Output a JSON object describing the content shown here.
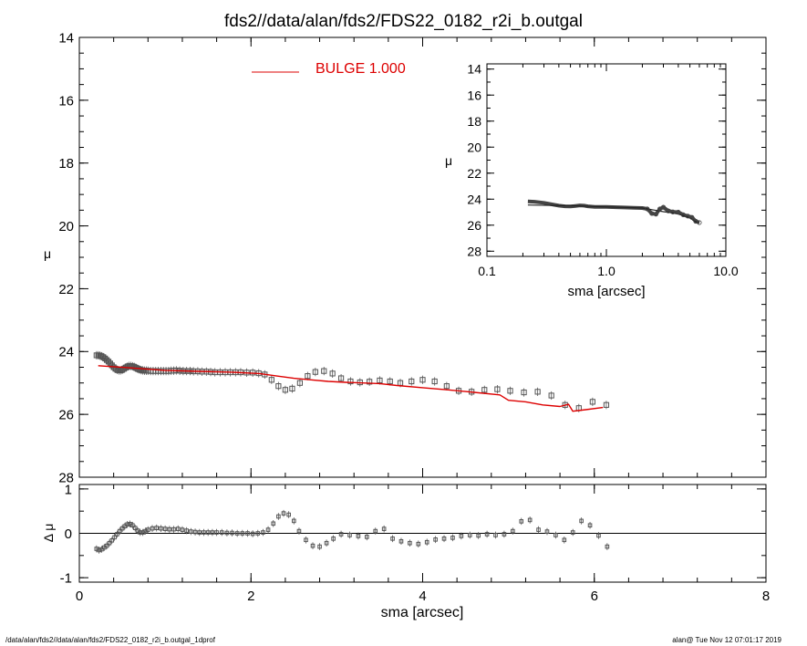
{
  "page": {
    "title": "fds2//data/alan/fds2/FDS22_0182_r2i_b.outgal",
    "footer_left": "/data/alan/fds2//data/alan/fds2/FDS22_0182_r2i_b.outgal_1dprof",
    "footer_right": "alan@  Tue Nov 12 07:01:17 2019"
  },
  "chart_data": [
    {
      "id": "main",
      "type": "scatter",
      "xlabel": "",
      "ylabel": "μ",
      "xlim": [
        0,
        8
      ],
      "ylim": [
        28,
        14
      ],
      "x_inverted": false,
      "y_inverted": true,
      "xticks": [
        0,
        2,
        4,
        6,
        8
      ],
      "xtick_labels": [
        "",
        "",
        "",
        "",
        ""
      ],
      "yticks": [
        14,
        16,
        18,
        20,
        22,
        24,
        26,
        28
      ],
      "ytick_labels": [
        "14",
        "16",
        "18",
        "20",
        "22",
        "24",
        "26",
        "28"
      ],
      "legend": {
        "label": "BULGE  1.000",
        "color": "#dd0000",
        "position": "top-left"
      },
      "series": [
        {
          "kind": "points",
          "color": "#555555",
          "x": [
            0.2,
            0.22,
            0.24,
            0.26,
            0.28,
            0.3,
            0.32,
            0.34,
            0.36,
            0.38,
            0.4,
            0.42,
            0.44,
            0.46,
            0.48,
            0.5,
            0.52,
            0.54,
            0.56,
            0.58,
            0.6,
            0.62,
            0.64,
            0.66,
            0.68,
            0.7,
            0.72,
            0.74,
            0.76,
            0.78,
            0.8,
            0.83,
            0.86,
            0.89,
            0.92,
            0.95,
            0.98,
            1.01,
            1.04,
            1.07,
            1.1,
            1.13,
            1.17,
            1.21,
            1.25,
            1.29,
            1.33,
            1.38,
            1.43,
            1.48,
            1.53,
            1.58,
            1.64,
            1.7,
            1.76,
            1.82,
            1.88,
            1.95,
            2.02,
            2.09,
            2.16,
            2.24,
            2.32,
            2.4,
            2.48,
            2.57,
            2.66,
            2.75,
            2.85,
            2.95,
            3.05,
            3.16,
            3.27,
            3.38,
            3.5,
            3.62,
            3.74,
            3.87,
            4.0,
            4.14,
            4.28,
            4.42,
            4.57,
            4.72,
            4.87,
            5.02,
            5.18,
            5.34,
            5.5,
            5.66,
            5.82,
            5.98,
            6.14
          ],
          "y": [
            24.12,
            24.12,
            24.13,
            24.15,
            24.18,
            24.22,
            24.27,
            24.32,
            24.38,
            24.44,
            24.5,
            24.55,
            24.58,
            24.6,
            24.6,
            24.58,
            24.55,
            24.51,
            24.48,
            24.46,
            24.46,
            24.47,
            24.49,
            24.52,
            24.55,
            24.57,
            24.59,
            24.6,
            24.61,
            24.61,
            24.61,
            24.62,
            24.62,
            24.62,
            24.62,
            24.62,
            24.62,
            24.62,
            24.62,
            24.61,
            24.61,
            24.6,
            24.61,
            24.62,
            24.62,
            24.62,
            24.63,
            24.63,
            24.64,
            24.64,
            24.65,
            24.66,
            24.66,
            24.66,
            24.66,
            24.66,
            24.66,
            24.67,
            24.67,
            24.69,
            24.73,
            24.9,
            25.1,
            25.22,
            25.18,
            25.0,
            24.78,
            24.65,
            24.62,
            24.7,
            24.85,
            24.95,
            24.98,
            24.96,
            24.92,
            24.95,
            25.0,
            24.95,
            24.9,
            24.95,
            25.1,
            25.25,
            25.28,
            25.22,
            25.2,
            25.25,
            25.3,
            25.28,
            25.4,
            25.7,
            25.8,
            25.6,
            25.7
          ],
          "yerr_display": "small vertical bars"
        },
        {
          "kind": "line",
          "name": "BULGE  1.000",
          "color": "#dd0000",
          "x": [
            0.22,
            0.6,
            1.0,
            1.4,
            1.8,
            2.1,
            2.3,
            2.5,
            2.7,
            2.9,
            3.1,
            3.3,
            3.5,
            3.7,
            4.0,
            4.3,
            4.6,
            4.9,
            5.0,
            5.2,
            5.4,
            5.6,
            5.7,
            5.75,
            5.9,
            6.1
          ],
          "y": [
            24.45,
            24.52,
            24.6,
            24.63,
            24.66,
            24.7,
            24.78,
            24.85,
            24.9,
            24.95,
            24.98,
            25.0,
            25.02,
            25.08,
            25.15,
            25.22,
            25.3,
            25.38,
            25.55,
            25.6,
            25.7,
            25.75,
            25.68,
            25.9,
            25.85,
            25.78
          ]
        }
      ]
    },
    {
      "id": "residual",
      "type": "scatter",
      "xlabel": "sma [arcsec]",
      "ylabel": "Δ μ",
      "xlim": [
        0,
        8
      ],
      "ylim": [
        -1.1,
        1.1
      ],
      "xticks": [
        0,
        2,
        4,
        6,
        8
      ],
      "xtick_labels": [
        "0",
        "2",
        "4",
        "6",
        "8"
      ],
      "yticks": [
        -1,
        0,
        1
      ],
      "ytick_labels": [
        "-1",
        "0",
        "1"
      ],
      "zero_line": true,
      "series": [
        {
          "kind": "points",
          "color": "#555555",
          "x": [
            0.2,
            0.23,
            0.26,
            0.29,
            0.32,
            0.35,
            0.38,
            0.41,
            0.44,
            0.47,
            0.5,
            0.53,
            0.56,
            0.59,
            0.62,
            0.65,
            0.68,
            0.71,
            0.74,
            0.77,
            0.8,
            0.85,
            0.9,
            0.95,
            1.0,
            1.05,
            1.1,
            1.15,
            1.2,
            1.25,
            1.3,
            1.35,
            1.4,
            1.45,
            1.5,
            1.55,
            1.6,
            1.66,
            1.72,
            1.78,
            1.84,
            1.9,
            1.96,
            2.02,
            2.08,
            2.14,
            2.2,
            2.26,
            2.32,
            2.38,
            2.44,
            2.5,
            2.56,
            2.64,
            2.72,
            2.8,
            2.88,
            2.96,
            3.05,
            3.15,
            3.25,
            3.35,
            3.45,
            3.55,
            3.65,
            3.75,
            3.85,
            3.95,
            4.05,
            4.15,
            4.25,
            4.35,
            4.45,
            4.55,
            4.65,
            4.75,
            4.85,
            4.95,
            5.05,
            5.15,
            5.25,
            5.35,
            5.45,
            5.55,
            5.65,
            5.75,
            5.85,
            5.95,
            6.05,
            6.15
          ],
          "y": [
            -0.35,
            -0.38,
            -0.36,
            -0.32,
            -0.28,
            -0.22,
            -0.16,
            -0.09,
            -0.02,
            0.05,
            0.11,
            0.16,
            0.2,
            0.21,
            0.18,
            0.12,
            0.06,
            0.02,
            0.02,
            0.05,
            0.08,
            0.11,
            0.12,
            0.11,
            0.1,
            0.09,
            0.09,
            0.1,
            0.08,
            0.06,
            0.04,
            0.03,
            0.02,
            0.02,
            0.02,
            0.02,
            0.02,
            0.02,
            0.01,
            0.01,
            0.0,
            0.0,
            0.0,
            -0.01,
            0.0,
            0.02,
            0.08,
            0.22,
            0.38,
            0.45,
            0.42,
            0.28,
            0.05,
            -0.15,
            -0.28,
            -0.3,
            -0.22,
            -0.12,
            -0.02,
            -0.04,
            -0.06,
            -0.08,
            0.05,
            0.1,
            -0.12,
            -0.18,
            -0.22,
            -0.24,
            -0.2,
            -0.14,
            -0.12,
            -0.1,
            -0.06,
            -0.04,
            -0.05,
            -0.02,
            -0.04,
            -0.02,
            0.05,
            0.27,
            0.3,
            0.08,
            0.04,
            -0.04,
            -0.15,
            0.02,
            0.28,
            0.18,
            -0.05,
            -0.3
          ]
        }
      ]
    },
    {
      "id": "inset",
      "type": "line",
      "xlabel": "sma [arcsec]",
      "ylabel": "μ",
      "x_scale": "log",
      "xlim": [
        0.1,
        10.0
      ],
      "ylim": [
        28.4,
        13.6
      ],
      "xticks": [
        0.1,
        1.0,
        10.0
      ],
      "xtick_labels": [
        "0.1",
        "1.0",
        "10.0"
      ],
      "yticks": [
        14,
        16,
        18,
        20,
        22,
        24,
        26,
        28
      ],
      "ytick_labels": [
        "14",
        "16",
        "18",
        "20",
        "22",
        "24",
        "26",
        "28"
      ],
      "series": [
        {
          "kind": "thick-profile",
          "color": "#444444",
          "x": [
            0.22,
            0.25,
            0.3,
            0.35,
            0.4,
            0.45,
            0.5,
            0.55,
            0.6,
            0.65,
            0.7,
            0.8,
            0.9,
            1.0,
            1.2,
            1.4,
            1.7,
            2.0,
            2.2,
            2.4,
            2.6,
            2.8,
            3.0,
            3.3,
            3.6,
            4.0,
            4.4,
            4.8,
            5.2,
            5.6,
            6.0
          ],
          "y": [
            24.18,
            24.2,
            24.28,
            24.4,
            24.5,
            24.55,
            24.56,
            24.52,
            24.48,
            24.5,
            24.55,
            24.6,
            24.6,
            24.6,
            24.62,
            24.64,
            24.66,
            24.68,
            24.75,
            25.1,
            25.15,
            24.75,
            24.62,
            24.9,
            24.98,
            25.0,
            25.2,
            25.3,
            25.4,
            25.7,
            25.8
          ]
        },
        {
          "kind": "model-line",
          "color": "#222222",
          "x": [
            0.22,
            0.6,
            1.0,
            1.5,
            2.0,
            2.5,
            3.0,
            3.5,
            4.0,
            4.5,
            5.0,
            5.5,
            6.0
          ],
          "y": [
            24.45,
            24.52,
            24.6,
            24.64,
            24.68,
            24.84,
            24.96,
            25.04,
            25.15,
            25.28,
            25.45,
            25.7,
            25.82
          ]
        }
      ]
    }
  ]
}
